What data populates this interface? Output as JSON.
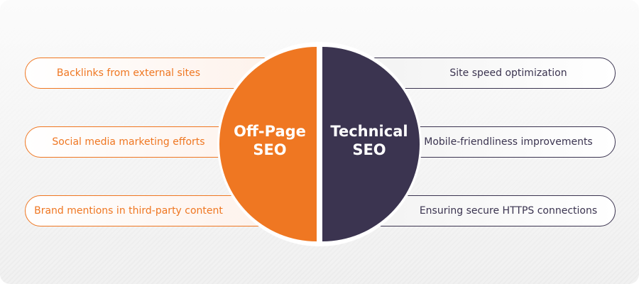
{
  "left": {
    "title_line1": "Off-Page",
    "title_line2": "SEO",
    "color": "#ef7722",
    "items": [
      "Backlinks from external sites",
      "Social media marketing efforts",
      "Brand mentions in third-party content"
    ]
  },
  "right": {
    "title_line1": "Technical",
    "title_line2": "SEO",
    "color": "#3b3450",
    "items": [
      "Site speed optimization",
      "Mobile-friendliness improvements",
      "Ensuring secure HTTPS connections"
    ]
  }
}
